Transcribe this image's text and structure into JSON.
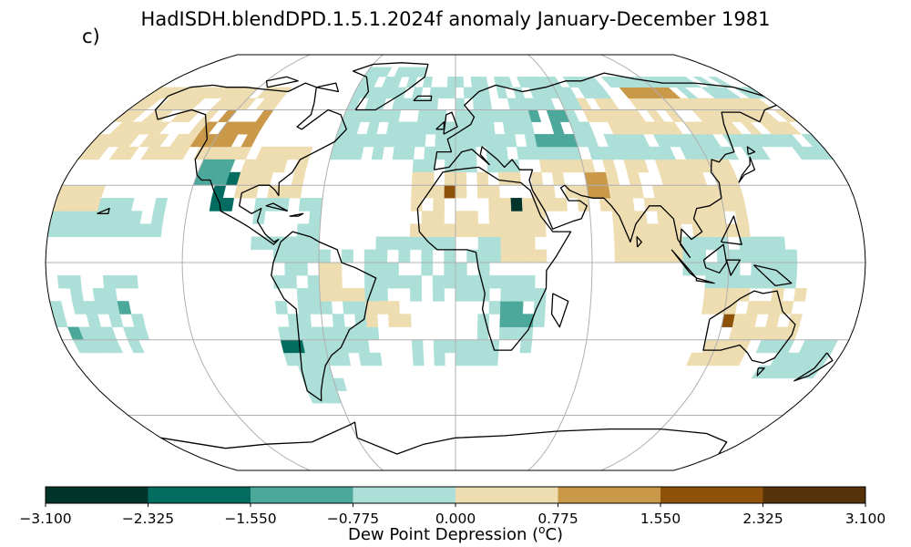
{
  "title": "HadISDH.blendDPD.1.5.1.2024f anomaly January-December 1981",
  "panel_label": "c)",
  "projection": "Robinson",
  "map_data": {
    "variable": "Dew Point Depression anomaly",
    "grid_resolution_deg": 5,
    "missing_color": "#ffffff",
    "land_outline_color": "#000000",
    "graticule_color": "#b0b0b0",
    "graticule_meridians": [
      -120,
      -60,
      0,
      60,
      120
    ],
    "graticule_parallels": [
      -60,
      -30,
      0,
      30,
      60
    ],
    "anomaly_regions": [
      {
        "lon_range": [
          -180,
          -100
        ],
        "lat_range": [
          40,
          70
        ],
        "bin": 4
      },
      {
        "lon_range": [
          -130,
          -100
        ],
        "lat_range": [
          45,
          60
        ],
        "bin": 5
      },
      {
        "lon_range": [
          -110,
          -95
        ],
        "lat_range": [
          20,
          35
        ],
        "bin": 1
      },
      {
        "lon_range": [
          -120,
          -105
        ],
        "lat_range": [
          30,
          40
        ],
        "bin": 2
      },
      {
        "lon_range": [
          -100,
          -70
        ],
        "lat_range": [
          25,
          45
        ],
        "bin": 4
      },
      {
        "lon_range": [
          -90,
          -60
        ],
        "lat_range": [
          5,
          25
        ],
        "bin": 3
      },
      {
        "lon_range": [
          -80,
          -35
        ],
        "lat_range": [
          -40,
          5
        ],
        "bin": 3
      },
      {
        "lon_range": [
          -75,
          -55
        ],
        "lat_range": [
          -55,
          -40
        ],
        "bin": 3
      },
      {
        "lon_range": [
          -80,
          -70
        ],
        "lat_range": [
          -35,
          -30
        ],
        "bin": 1
      },
      {
        "lon_range": [
          -60,
          -40
        ],
        "lat_range": [
          -15,
          0
        ],
        "bin": 4
      },
      {
        "lon_range": [
          -60,
          -20
        ],
        "lat_range": [
          40,
          80
        ],
        "bin": 3
      },
      {
        "lon_range": [
          -20,
          60
        ],
        "lat_range": [
          35,
          75
        ],
        "bin": 3
      },
      {
        "lon_range": [
          -20,
          40
        ],
        "lat_range": [
          0,
          35
        ],
        "bin": 4
      },
      {
        "lon_range": [
          -5,
          0
        ],
        "lat_range": [
          25,
          30
        ],
        "bin": 6
      },
      {
        "lon_range": [
          25,
          30
        ],
        "lat_range": [
          20,
          25
        ],
        "bin": 0
      },
      {
        "lon_range": [
          40,
          60
        ],
        "lat_range": [
          45,
          60
        ],
        "bin": 2
      },
      {
        "lon_range": [
          40,
          110
        ],
        "lat_range": [
          20,
          40
        ],
        "bin": 4
      },
      {
        "lon_range": [
          60,
          80
        ],
        "lat_range": [
          25,
          35
        ],
        "bin": 5
      },
      {
        "lon_range": [
          60,
          180
        ],
        "lat_range": [
          40,
          75
        ],
        "bin": 3
      },
      {
        "lon_range": [
          70,
          180
        ],
        "lat_range": [
          50,
          65
        ],
        "bin": 4
      },
      {
        "lon_range": [
          90,
          130
        ],
        "lat_range": [
          65,
          70
        ],
        "bin": 5
      },
      {
        "lon_range": [
          70,
          130
        ],
        "lat_range": [
          0,
          40
        ],
        "bin": 4
      },
      {
        "lon_range": [
          100,
          150
        ],
        "lat_range": [
          -10,
          10
        ],
        "bin": 3
      },
      {
        "lon_range": [
          10,
          40
        ],
        "lat_range": [
          -35,
          -5
        ],
        "bin": 3
      },
      {
        "lon_range": [
          20,
          35
        ],
        "lat_range": [
          -25,
          -15
        ],
        "bin": 2
      },
      {
        "lon_range": [
          110,
          155
        ],
        "lat_range": [
          -40,
          -10
        ],
        "bin": 4
      },
      {
        "lon_range": [
          115,
          125
        ],
        "lat_range": [
          -30,
          -20
        ],
        "bin": 6
      },
      {
        "lon_range": [
          135,
          140
        ],
        "lat_range": [
          -25,
          -20
        ],
        "bin": 6
      },
      {
        "lon_range": [
          140,
          175
        ],
        "lat_range": [
          -45,
          -30
        ],
        "bin": 3
      },
      {
        "lon_range": [
          -180,
          -140
        ],
        "lat_range": [
          -35,
          -5
        ],
        "bin": 3
      },
      {
        "lon_range": [
          -150,
          -140
        ],
        "lat_range": [
          -20,
          -15
        ],
        "bin": 2
      },
      {
        "lon_range": [
          -180,
          -170
        ],
        "lat_range": [
          -30,
          -25
        ],
        "bin": 2
      },
      {
        "lon_range": [
          -40,
          20
        ],
        "lat_range": [
          -15,
          10
        ],
        "bin": 3
      },
      {
        "lon_range": [
          -40,
          -20
        ],
        "lat_range": [
          -25,
          -15
        ],
        "bin": 4
      },
      {
        "lon_range": [
          -20,
          20
        ],
        "lat_range": [
          -40,
          -30
        ],
        "bin": 3
      },
      {
        "lon_range": [
          -180,
          -130
        ],
        "lat_range": [
          10,
          25
        ],
        "bin": 3
      },
      {
        "lon_range": [
          -180,
          -160
        ],
        "lat_range": [
          20,
          30
        ],
        "bin": 4
      }
    ]
  },
  "colorbar": {
    "label": "Dew Point Depression (°C)",
    "label_prefix": "Dew Point Depression (",
    "label_super": "o",
    "label_suffix": "C)",
    "boundaries": [
      -3.1,
      -2.325,
      -1.55,
      -0.775,
      0.0,
      0.775,
      1.55,
      2.325,
      3.1
    ],
    "tick_labels": [
      "−3.100",
      "−2.325",
      "−1.550",
      "−0.775",
      "0.000",
      "0.775",
      "1.550",
      "2.325",
      "3.100"
    ],
    "colors": [
      "#01352c",
      "#036c60",
      "#4ca89b",
      "#acdfd8",
      "#eeddb1",
      "#c99848",
      "#8d510a",
      "#553207"
    ]
  }
}
